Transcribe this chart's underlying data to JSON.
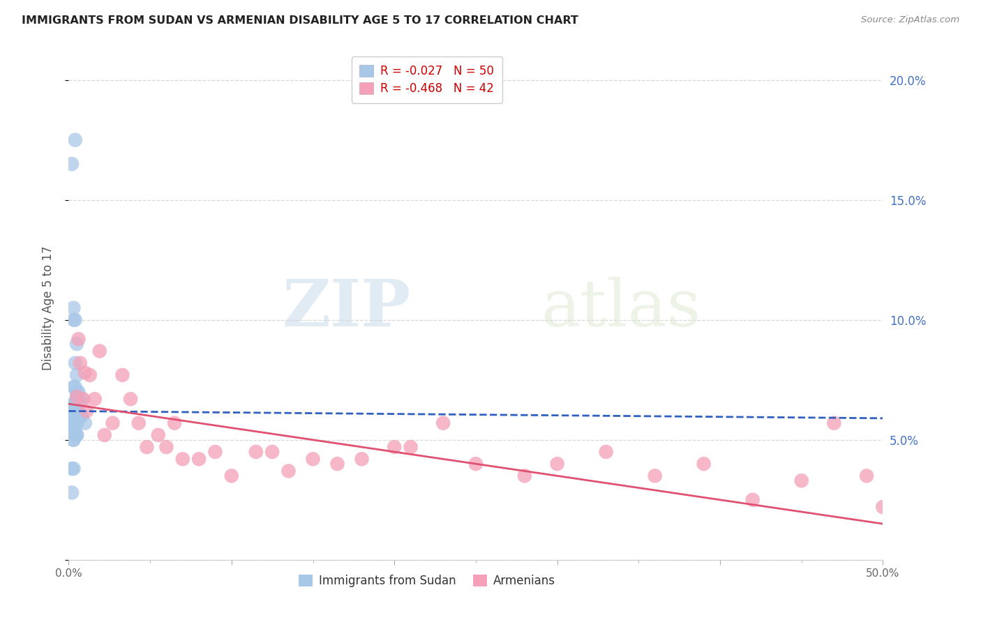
{
  "title": "IMMIGRANTS FROM SUDAN VS ARMENIAN DISABILITY AGE 5 TO 17 CORRELATION CHART",
  "source": "Source: ZipAtlas.com",
  "ylabel_left": "Disability Age 5 to 17",
  "legend_entries": [
    {
      "label": "R = -0.027   N = 50",
      "color": "#a8c8e8"
    },
    {
      "label": "R = -0.468   N = 42",
      "color": "#f4a0b8"
    }
  ],
  "legend_bottom": [
    "Immigrants from Sudan",
    "Armenians"
  ],
  "right_yticks": [
    0.0,
    0.05,
    0.1,
    0.15,
    0.2
  ],
  "right_yticklabels": [
    "",
    "5.0%",
    "10.0%",
    "15.0%",
    "20.0%"
  ],
  "xlim": [
    0.0,
    0.5
  ],
  "ylim": [
    0.0,
    0.21
  ],
  "background_color": "#ffffff",
  "grid_color": "#d8d8d8",
  "blue_scatter_color": "#a8c8e8",
  "pink_scatter_color": "#f4a0b8",
  "blue_line_color": "#3060c0",
  "pink_line_color": "#e05070",
  "watermark_zip": "ZIP",
  "watermark_atlas": "atlas",
  "sudan_x": [
    0.002,
    0.004,
    0.001,
    0.003,
    0.003,
    0.004,
    0.005,
    0.003,
    0.004,
    0.005,
    0.004,
    0.005,
    0.005,
    0.006,
    0.005,
    0.005,
    0.004,
    0.003,
    0.004,
    0.005,
    0.006,
    0.006,
    0.005,
    0.005,
    0.004,
    0.002,
    0.003,
    0.003,
    0.004,
    0.004,
    0.005,
    0.005,
    0.004,
    0.004,
    0.003,
    0.007,
    0.008,
    0.004,
    0.005,
    0.005,
    0.002,
    0.003,
    0.002,
    0.004,
    0.003,
    0.003,
    0.006,
    0.008,
    0.002,
    0.01
  ],
  "sudan_y": [
    0.165,
    0.175,
    0.062,
    0.105,
    0.1,
    0.1,
    0.09,
    0.072,
    0.072,
    0.068,
    0.082,
    0.062,
    0.077,
    0.067,
    0.062,
    0.07,
    0.062,
    0.065,
    0.062,
    0.057,
    0.062,
    0.067,
    0.057,
    0.06,
    0.057,
    0.06,
    0.038,
    0.05,
    0.055,
    0.052,
    0.057,
    0.052,
    0.06,
    0.062,
    0.065,
    0.06,
    0.067,
    0.065,
    0.062,
    0.052,
    0.028,
    0.05,
    0.038,
    0.057,
    0.055,
    0.057,
    0.07,
    0.06,
    0.055,
    0.057
  ],
  "armenian_x": [
    0.005,
    0.006,
    0.007,
    0.01,
    0.009,
    0.011,
    0.013,
    0.016,
    0.019,
    0.022,
    0.027,
    0.033,
    0.038,
    0.043,
    0.048,
    0.055,
    0.06,
    0.065,
    0.07,
    0.08,
    0.09,
    0.1,
    0.115,
    0.125,
    0.135,
    0.15,
    0.165,
    0.18,
    0.2,
    0.21,
    0.23,
    0.25,
    0.28,
    0.3,
    0.33,
    0.36,
    0.39,
    0.42,
    0.45,
    0.47,
    0.49,
    0.5
  ],
  "armenian_y": [
    0.068,
    0.092,
    0.082,
    0.078,
    0.067,
    0.062,
    0.077,
    0.067,
    0.087,
    0.052,
    0.057,
    0.077,
    0.067,
    0.057,
    0.047,
    0.052,
    0.047,
    0.057,
    0.042,
    0.042,
    0.045,
    0.035,
    0.045,
    0.045,
    0.037,
    0.042,
    0.04,
    0.042,
    0.047,
    0.047,
    0.057,
    0.04,
    0.035,
    0.04,
    0.045,
    0.035,
    0.04,
    0.025,
    0.033,
    0.057,
    0.035,
    0.022
  ],
  "xticks": [
    0.0,
    0.1,
    0.2,
    0.3,
    0.4,
    0.5
  ],
  "xticklabels": [
    "0.0%",
    "",
    "",
    "",
    "",
    "50.0%"
  ]
}
